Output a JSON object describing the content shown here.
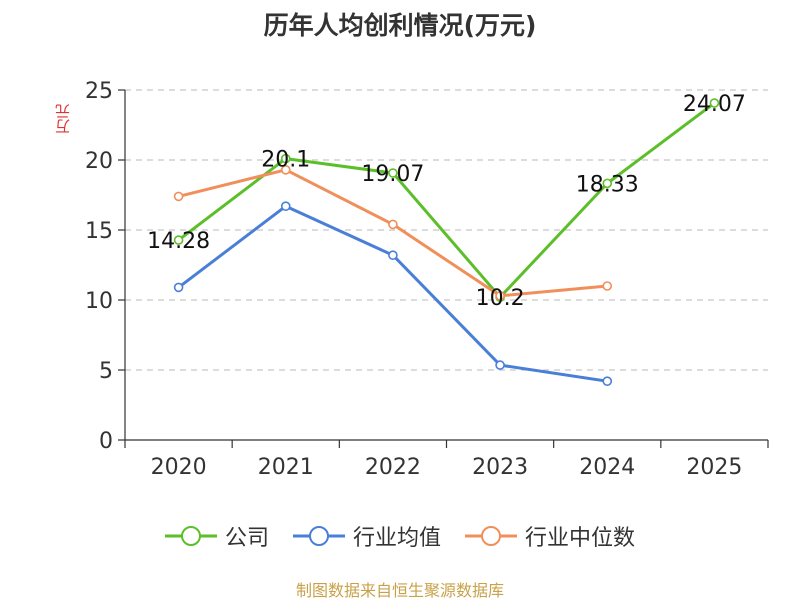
{
  "chart_data": {
    "type": "line",
    "title": "历年人均创利情况(万元)",
    "ylabel": "万元",
    "xlabel": "",
    "categories": [
      "2020",
      "2021",
      "2022",
      "2023",
      "2024",
      "2025"
    ],
    "ylim": [
      0,
      25
    ],
    "yticks": [
      0,
      5,
      10,
      15,
      20,
      25
    ],
    "grid": true,
    "legend_position": "bottom",
    "series": [
      {
        "name": "公司",
        "color": "#5cbf2a",
        "values": [
          14.28,
          20.1,
          19.07,
          10.2,
          18.33,
          24.07
        ],
        "labels": [
          "14.28",
          "20.1",
          "19.07",
          "10.2",
          "18.33",
          "24.07"
        ]
      },
      {
        "name": "行业均值",
        "color": "#4a7fd8",
        "values": [
          10.9,
          16.7,
          13.2,
          5.35,
          4.2,
          null
        ]
      },
      {
        "name": "行业中位数",
        "color": "#f08f5a",
        "values": [
          17.4,
          19.3,
          15.4,
          10.3,
          11.0,
          null
        ]
      }
    ]
  },
  "footer": "制图数据来自恒生聚源数据库"
}
